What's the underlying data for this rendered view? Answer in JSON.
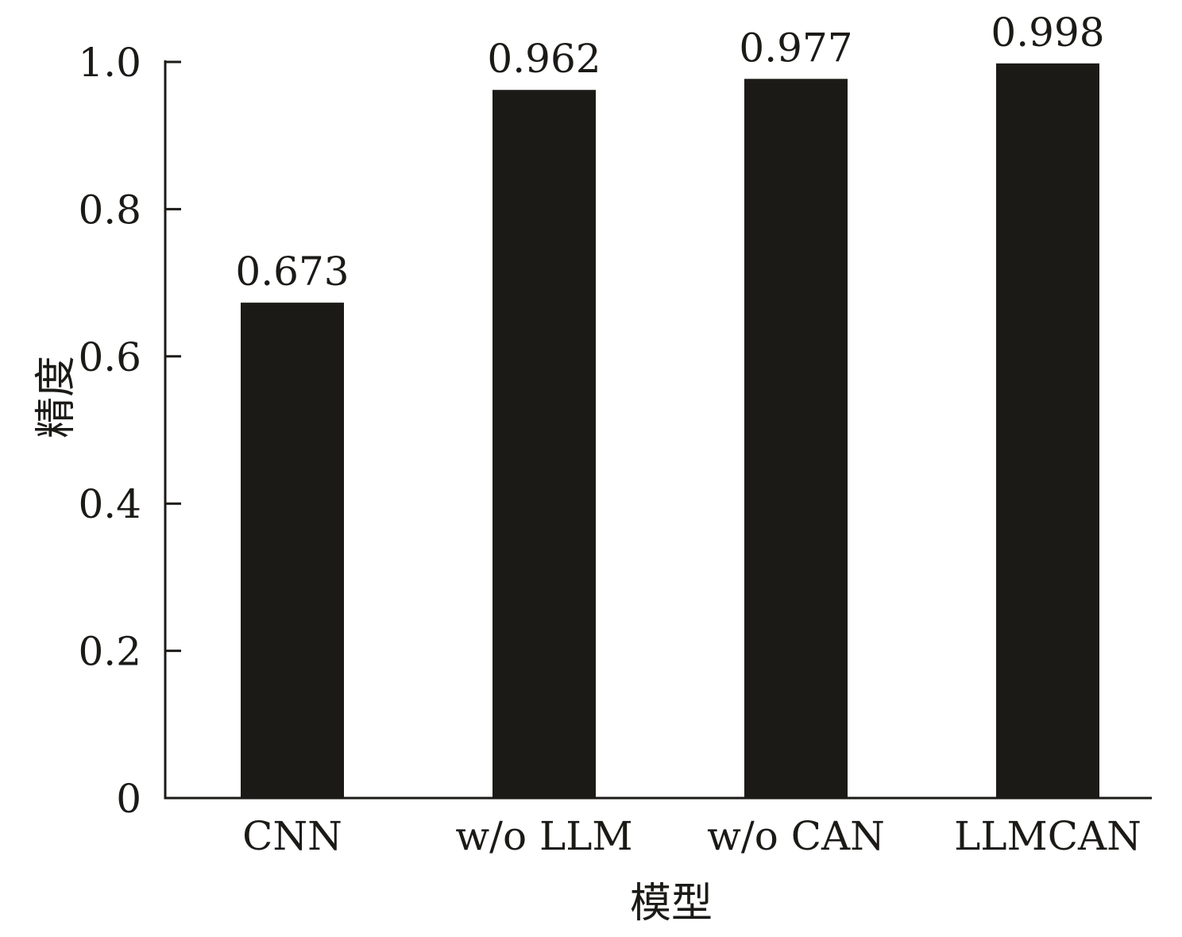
{
  "chart_data": {
    "type": "bar",
    "categories": [
      "CNN",
      "w/o LLM",
      "w/o CAN",
      "LLMCAN"
    ],
    "values": [
      0.673,
      0.962,
      0.977,
      0.998
    ],
    "data_labels": [
      "0.673",
      "0.962",
      "0.977",
      "0.998"
    ],
    "xlabel": "模型",
    "ylabel": "精度",
    "ylim": [
      0,
      1.0
    ],
    "yticks": [
      0,
      0.2,
      0.4,
      0.6,
      0.8,
      1.0
    ],
    "ytick_labels": [
      "0",
      "0.2",
      "0.4",
      "0.6",
      "0.8",
      "1.0"
    ],
    "bar_color": "#1c1a17",
    "grid": false,
    "legend": "none"
  }
}
